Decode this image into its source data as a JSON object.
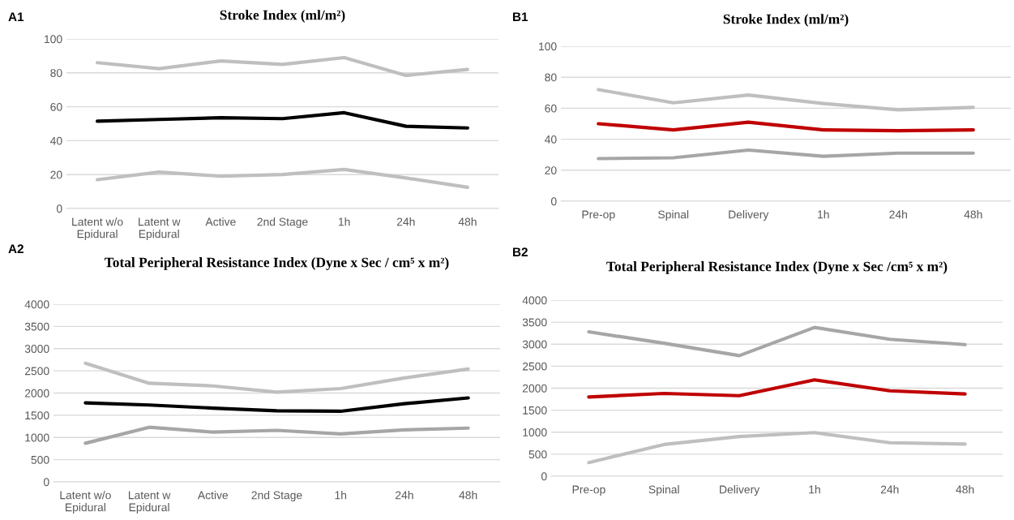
{
  "chart_data": [
    {
      "type": "line",
      "title": "Stroke Index (ml/m²)",
      "annotations": [
        "A1"
      ],
      "categories": [
        "Latent w/o\nEpidural",
        "Latent w\nEpidural",
        "Active",
        "2nd Stage",
        "1h",
        "24h",
        "48h"
      ],
      "series": [
        {
          "color": "#bfbfbf",
          "values": [
            86,
            82.5,
            87,
            85,
            89,
            78.5,
            82
          ]
        },
        {
          "color": "#000000",
          "values": [
            51.5,
            52.5,
            53.5,
            53,
            56.5,
            48.5,
            47.5
          ]
        },
        {
          "color": "#bfbfbf",
          "values": [
            17,
            21.5,
            19,
            20,
            23,
            18,
            12.5
          ]
        }
      ],
      "ylim": [
        0,
        100
      ],
      "yticks": [
        0,
        20,
        40,
        60,
        80,
        100
      ],
      "grid": "y"
    },
    {
      "type": "line",
      "title": "Stroke Index (ml/m²)",
      "annotations": [
        "B1"
      ],
      "categories": [
        "Pre-op",
        "Spinal",
        "Delivery",
        "1h",
        "24h",
        "48h"
      ],
      "series": [
        {
          "color": "#bfbfbf",
          "values": [
            72,
            63.5,
            68.5,
            63,
            59,
            60.5
          ]
        },
        {
          "color": "#c00000",
          "values": [
            50,
            46,
            51,
            46,
            45.5,
            46
          ]
        },
        {
          "color": "#a6a6a6",
          "values": [
            27.5,
            28,
            33,
            29,
            31,
            31
          ]
        }
      ],
      "ylim": [
        0,
        100
      ],
      "yticks": [
        0,
        20,
        40,
        60,
        80,
        100
      ],
      "grid": "y"
    },
    {
      "type": "line",
      "title": "Total Peripheral Resistance Index (Dyne x Sec / cm⁵ x m²)",
      "annotations": [
        "A2"
      ],
      "categories": [
        "Latent w/o\nEpidural",
        "Latent w\nEpidural",
        "Active",
        "2nd Stage",
        "1h",
        "24h",
        "48h"
      ],
      "series": [
        {
          "color": "#bfbfbf",
          "values": [
            2670,
            2220,
            2160,
            2020,
            2100,
            2340,
            2540
          ]
        },
        {
          "color": "#000000",
          "values": [
            1780,
            1730,
            1660,
            1600,
            1590,
            1760,
            1890
          ]
        },
        {
          "color": "#a6a6a6",
          "values": [
            870,
            1230,
            1120,
            1160,
            1080,
            1170,
            1210
          ]
        }
      ],
      "ylim": [
        0,
        4000
      ],
      "yticks": [
        0,
        500,
        1000,
        1500,
        2000,
        2500,
        3000,
        3500,
        4000
      ],
      "grid": "y"
    },
    {
      "type": "line",
      "title": "Total Peripheral Resistance Index (Dyne x Sec /cm⁵ x m²)",
      "annotations": [
        "B2"
      ],
      "categories": [
        "Pre-op",
        "Spinal",
        "Delivery",
        "1h",
        "24h",
        "48h"
      ],
      "series": [
        {
          "color": "#a6a6a6",
          "values": [
            3280,
            3020,
            2740,
            3380,
            3110,
            2990
          ]
        },
        {
          "color": "#c00000",
          "values": [
            1800,
            1880,
            1830,
            2190,
            1940,
            1870
          ]
        },
        {
          "color": "#bfbfbf",
          "values": [
            310,
            720,
            900,
            990,
            760,
            730
          ]
        }
      ],
      "ylim": [
        0,
        4000
      ],
      "yticks": [
        0,
        500,
        1000,
        1500,
        2000,
        2500,
        3000,
        3500,
        4000
      ],
      "grid": "y"
    }
  ]
}
